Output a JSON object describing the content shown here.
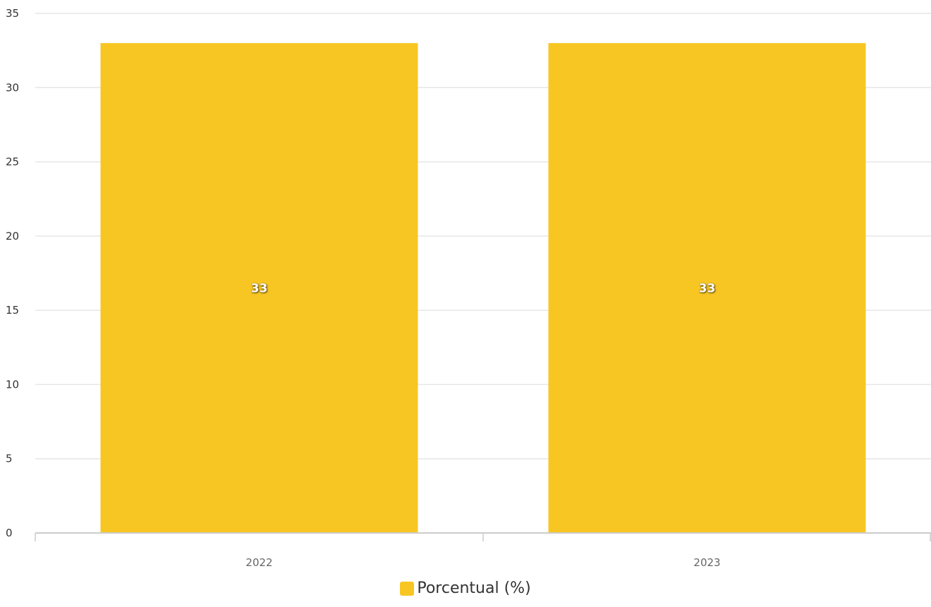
{
  "chart_data": {
    "type": "bar",
    "categories": [
      "2022",
      "2023"
    ],
    "series": [
      {
        "name": "Porcentual (%)",
        "values": [
          33,
          33
        ],
        "color": "#F8C623"
      }
    ],
    "ylim": [
      0,
      35
    ],
    "yticks": [
      "0",
      "5",
      "10",
      "15",
      "20",
      "25",
      "30",
      "35"
    ],
    "data_labels": [
      "33",
      "33"
    ],
    "grid": true,
    "legend_position": "bottom-center",
    "title": "",
    "xlabel": "",
    "ylabel": ""
  },
  "legend": {
    "label": "Porcentual (%)"
  }
}
